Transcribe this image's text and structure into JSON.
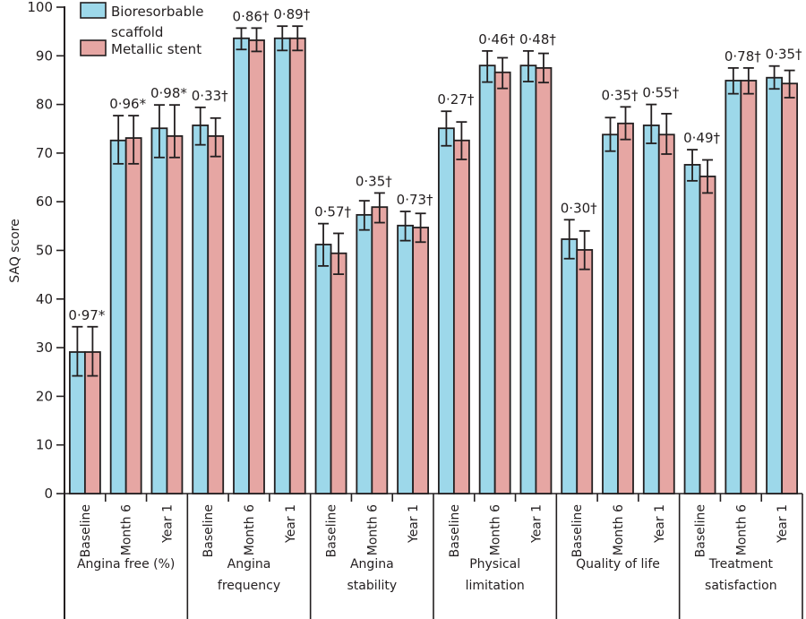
{
  "chart_data": {
    "type": "bar",
    "title": "",
    "xlabel": "",
    "ylabel": "SAQ score",
    "ylim": [
      0,
      100
    ],
    "yticks": [
      0,
      10,
      20,
      30,
      40,
      50,
      60,
      70,
      80,
      90,
      100
    ],
    "grid": false,
    "legend_position": "top-left",
    "series": [
      {
        "name": "Bioresorbable scaffold",
        "legend_lines": [
          "Bioresorbable",
          "scaffold"
        ],
        "color": "#9dd8ea"
      },
      {
        "name": "Metallic stent",
        "legend_lines": [
          "Metallic stent"
        ],
        "color": "#e6a6a3"
      }
    ],
    "groups": [
      {
        "label_lines": [
          "Angina free (%)"
        ],
        "categories": [
          {
            "label": "Baseline",
            "pvalue": "0·97*",
            "values": [
              29.1,
              29.1
            ],
            "err_low": [
              24.2,
              24.2
            ],
            "err_high": [
              34.3,
              34.3
            ]
          },
          {
            "label": "Month 6",
            "pvalue": "0·96*",
            "values": [
              72.6,
              73.1
            ],
            "err_low": [
              67.8,
              67.8
            ],
            "err_high": [
              77.7,
              77.7
            ]
          },
          {
            "label": "Year 1",
            "pvalue": "0·98*",
            "values": [
              75.1,
              73.5
            ],
            "err_low": [
              69.1,
              69.1
            ],
            "err_high": [
              79.9,
              79.9
            ]
          }
        ]
      },
      {
        "label_lines": [
          "Angina",
          "frequency"
        ],
        "categories": [
          {
            "label": "Baseline",
            "pvalue": "0·33†",
            "values": [
              75.7,
              73.5
            ],
            "err_low": [
              71.7,
              69.3
            ],
            "err_high": [
              79.4,
              77.2
            ]
          },
          {
            "label": "Month 6",
            "pvalue": "0·86†",
            "values": [
              93.6,
              93.2
            ],
            "err_low": [
              91.3,
              90.9
            ],
            "err_high": [
              95.7,
              95.7
            ]
          },
          {
            "label": "Year 1",
            "pvalue": "0·89†",
            "values": [
              93.6,
              93.6
            ],
            "err_low": [
              91.1,
              91.1
            ],
            "err_high": [
              96.1,
              96.1
            ]
          }
        ]
      },
      {
        "label_lines": [
          "Angina",
          "stability"
        ],
        "categories": [
          {
            "label": "Baseline",
            "pvalue": "0·57†",
            "values": [
              51.2,
              49.4
            ],
            "err_low": [
              46.8,
              45.1
            ],
            "err_high": [
              55.5,
              53.5
            ]
          },
          {
            "label": "Month 6",
            "pvalue": "0·35†",
            "values": [
              57.3,
              58.9
            ],
            "err_low": [
              54.2,
              55.7
            ],
            "err_high": [
              60.2,
              61.8
            ]
          },
          {
            "label": "Year 1",
            "pvalue": "0·73†",
            "values": [
              55.1,
              54.7
            ],
            "err_low": [
              52.0,
              51.7
            ],
            "err_high": [
              58.0,
              57.6
            ]
          }
        ]
      },
      {
        "label_lines": [
          "Physical",
          "limitation"
        ],
        "categories": [
          {
            "label": "Baseline",
            "pvalue": "0·27†",
            "values": [
              75.1,
              72.6
            ],
            "err_low": [
              71.5,
              68.7
            ],
            "err_high": [
              78.6,
              76.4
            ]
          },
          {
            "label": "Month 6",
            "pvalue": "0·46†",
            "values": [
              88.0,
              86.6
            ],
            "err_low": [
              84.6,
              83.3
            ],
            "err_high": [
              91.0,
              89.6
            ]
          },
          {
            "label": "Year 1",
            "pvalue": "0·48†",
            "values": [
              88.0,
              87.5
            ],
            "err_low": [
              84.7,
              84.5
            ],
            "err_high": [
              91.0,
              90.5
            ]
          }
        ]
      },
      {
        "label_lines": [
          "Quality of life"
        ],
        "categories": [
          {
            "label": "Baseline",
            "pvalue": "0·30†",
            "values": [
              52.3,
              50.1
            ],
            "err_low": [
              48.3,
              46.1
            ],
            "err_high": [
              56.3,
              54.0
            ]
          },
          {
            "label": "Month 6",
            "pvalue": "0·35†",
            "values": [
              73.8,
              76.1
            ],
            "err_low": [
              70.4,
              72.8
            ],
            "err_high": [
              77.3,
              79.5
            ]
          },
          {
            "label": "Year 1",
            "pvalue": "0·55†",
            "values": [
              75.7,
              73.8
            ],
            "err_low": [
              72.0,
              69.8
            ],
            "err_high": [
              80.0,
              78.1
            ]
          }
        ]
      },
      {
        "label_lines": [
          "Treatment",
          "satisfaction"
        ],
        "categories": [
          {
            "label": "Baseline",
            "pvalue": "0·49†",
            "values": [
              67.6,
              65.2
            ],
            "err_low": [
              64.3,
              61.8
            ],
            "err_high": [
              70.7,
              68.6
            ]
          },
          {
            "label": "Month 6",
            "pvalue": "0·78†",
            "values": [
              84.9,
              84.9
            ],
            "err_low": [
              82.2,
              82.2
            ],
            "err_high": [
              87.5,
              87.5
            ]
          },
          {
            "label": "Year 1",
            "pvalue": "0·35†",
            "values": [
              85.5,
              84.3
            ],
            "err_low": [
              83.2,
              81.4
            ],
            "err_high": [
              87.9,
              87.0
            ]
          }
        ]
      }
    ]
  }
}
